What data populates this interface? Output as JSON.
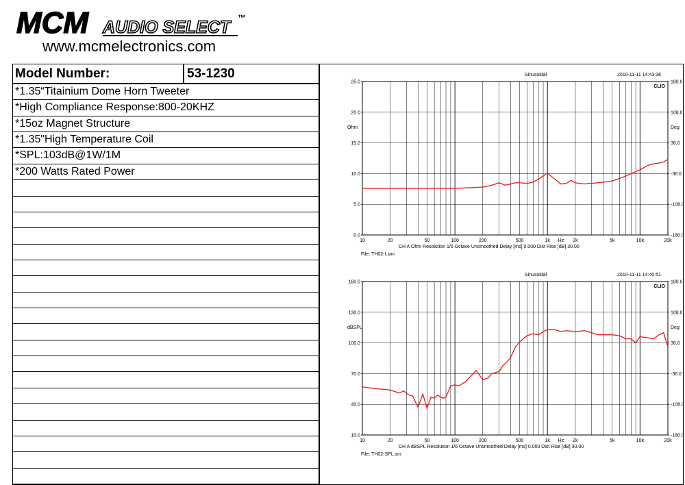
{
  "header": {
    "logo_text": "MCM AUDIO SELECT™",
    "url": "www.mcmelectronics.com"
  },
  "spec": {
    "model_label": "Model Number:",
    "model_value": "53-1230",
    "features": [
      "*1.35“Titainium Dome Horn Tweeter",
      "*High Compliance Response:800-20KHZ",
      "*15oz Magnet Structure",
      "*1.35\"High Temperature Coil",
      "*SPL:103dB@1W/1M",
      "*200 Watts Rated Power"
    ],
    "empty_rows": 19
  },
  "chart_data": [
    {
      "type": "line",
      "title": "Sinusoidal",
      "timestamp": "2010-11-11 14:43:36",
      "brand": "CLIO",
      "x_scale": "log",
      "xlim": [
        10,
        20000
      ],
      "x_ticks": [
        "10",
        "20",
        "50",
        "100",
        "200",
        "500",
        "1k",
        "2k",
        "5k",
        "10k",
        "20k"
      ],
      "x_unit_label": "Hz",
      "ylabel": "Ohm",
      "ylim": [
        0,
        25
      ],
      "y_ticks": [
        "0.0",
        "5.0",
        "10.0",
        "15.0",
        "20.0",
        "25.0"
      ],
      "y2label": "Deg",
      "y2_ticks": [
        "-180.0",
        "-108.0",
        "-36.0",
        "36.0",
        "108.0",
        "180.0"
      ],
      "footer": "CH A   Ohm   Resolution 1/6 Octave   Unsmoothed   Delay [ms] 0.000   Dist Rise [dB] 30.00",
      "file": "File: TH02-I.sini",
      "color": "#e8231f",
      "series": [
        {
          "x": [
            10,
            20,
            50,
            100,
            150,
            200,
            250,
            300,
            350,
            400,
            450,
            500,
            600,
            700,
            800,
            900,
            1000,
            1200,
            1400,
            1600,
            1800,
            2000,
            2200,
            2500,
            2800,
            3000,
            3500,
            4000,
            5000,
            6000,
            7000,
            8000,
            10000,
            12000,
            14000,
            16000,
            18000,
            20000
          ],
          "y": [
            7.6,
            7.6,
            7.6,
            7.6,
            7.7,
            7.8,
            8.1,
            8.5,
            8.1,
            8.3,
            8.5,
            8.5,
            8.4,
            8.6,
            9.1,
            9.6,
            10.1,
            9.1,
            8.3,
            8.4,
            8.9,
            8.5,
            8.4,
            8.3,
            8.4,
            8.4,
            8.5,
            8.6,
            8.8,
            9.2,
            9.6,
            10.0,
            10.6,
            11.3,
            11.6,
            11.7,
            11.9,
            12.3
          ]
        }
      ]
    },
    {
      "type": "line",
      "title": "Sinusoidal",
      "timestamp": "2010-11-11 14:40:51",
      "brand": "CLIO",
      "x_scale": "log",
      "xlim": [
        10,
        20000
      ],
      "x_ticks": [
        "10",
        "20",
        "50",
        "100",
        "200",
        "500",
        "1k",
        "2k",
        "5k",
        "10k",
        "20k"
      ],
      "x_unit_label": "Hz",
      "ylabel": "dBSPL",
      "ylim": [
        10,
        160
      ],
      "y_ticks": [
        "10.0",
        "40.0",
        "70.0",
        "100.0",
        "130.0",
        "160.0"
      ],
      "y2label": "Deg",
      "y2_ticks": [
        "-180.0",
        "-108.0",
        "-36.0",
        "36.0",
        "108.0",
        "180.0"
      ],
      "footer": "CH A   dBSPL   Resolution 1/6 Octave   Unsmoothed   Delay [ms] 0.000   Dist Rise [dB] 30.00",
      "file": "File: TH02-SPL.sin",
      "color": "#e8231f",
      "series": [
        {
          "x": [
            10,
            15,
            20,
            25,
            28,
            32,
            35,
            40,
            45,
            50,
            55,
            60,
            65,
            70,
            75,
            80,
            90,
            100,
            110,
            130,
            150,
            170,
            200,
            230,
            250,
            300,
            330,
            370,
            400,
            450,
            500,
            600,
            700,
            800,
            900,
            1000,
            1200,
            1400,
            1600,
            2000,
            2500,
            3000,
            3500,
            4000,
            5000,
            6000,
            7000,
            8000,
            9000,
            10000,
            12000,
            14000,
            16000,
            18000,
            20000
          ],
          "y": [
            57,
            55,
            54,
            51,
            53,
            49,
            48,
            37,
            50,
            36,
            47,
            46,
            49,
            47,
            46,
            47,
            58,
            59,
            58,
            62,
            68,
            73,
            64,
            66,
            70,
            72,
            78,
            82,
            86,
            96,
            101,
            107,
            109,
            108,
            111,
            113,
            113,
            111,
            112,
            111,
            112,
            110,
            108,
            108,
            108,
            107,
            104,
            104,
            100,
            106,
            105,
            104,
            108,
            110,
            96
          ]
        }
      ]
    }
  ]
}
